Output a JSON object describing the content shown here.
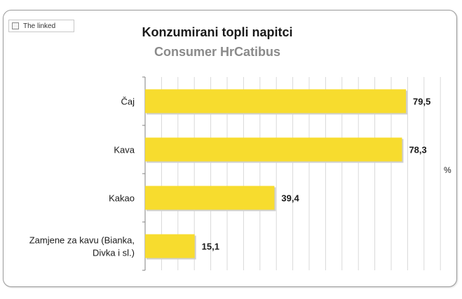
{
  "linked_label": "The linked",
  "chart_data": {
    "type": "bar",
    "orientation": "horizontal",
    "title": "Konzumirani topli napitci",
    "subtitle": "Consumer HrCatibus",
    "unit_label": "%",
    "categories": [
      [
        "Čaj"
      ],
      [
        "Kava"
      ],
      [
        "Kakao"
      ],
      [
        "Zamjene za kavu (Bianka,",
        "Divka i sl.)"
      ]
    ],
    "values": [
      79.5,
      78.3,
      39.4,
      15.1
    ],
    "value_labels": [
      "79,5",
      "78,3",
      "39,4",
      "15,1"
    ],
    "xlim": [
      0,
      100
    ],
    "bar_color": "#F7DC2E",
    "grid": true,
    "legend": "none"
  }
}
